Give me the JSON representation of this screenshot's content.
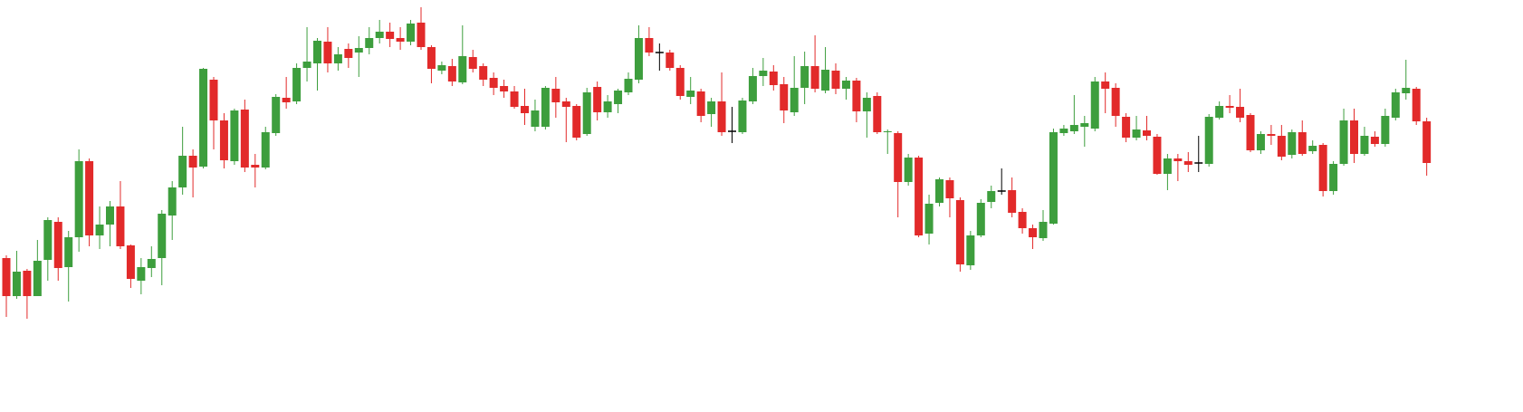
{
  "chart_data": {
    "type": "candlestick",
    "ylim": [
      0,
      455
    ],
    "up_color": "#3d9e3d",
    "down_color": "#e22a2a",
    "doji_color": "#000000",
    "open": [
      170,
      128,
      156,
      128,
      168,
      210,
      160,
      193,
      277,
      195,
      207,
      227,
      184,
      145,
      159,
      170,
      217,
      248,
      283,
      271,
      367,
      322,
      277,
      334,
      273,
      270,
      308,
      347,
      343,
      380,
      385,
      409,
      385,
      401,
      397,
      402,
      413,
      420,
      413,
      409,
      430,
      403,
      377,
      382,
      364,
      392,
      382,
      369,
      360,
      354,
      338,
      315,
      315,
      357,
      343,
      338,
      307,
      359,
      331,
      340,
      353,
      367,
      413,
      397,
      397,
      380,
      348,
      354,
      329,
      343,
      310,
      309,
      343,
      371,
      376,
      362,
      331,
      358,
      382,
      355,
      377,
      357,
      366,
      332,
      349,
      309,
      308,
      254,
      281,
      197,
      231,
      256,
      234,
      162,
      195,
      232,
      244,
      245,
      221,
      203,
      192,
      208,
      308,
      310,
      315,
      313,
      365,
      358,
      326,
      303,
      311,
      304,
      263,
      280,
      277,
      275,
      274,
      325,
      338,
      337,
      328,
      289,
      307,
      305,
      284,
      309,
      288,
      295,
      244,
      274,
      322,
      285,
      304,
      296,
      325,
      352,
      357,
      321
    ],
    "high": [
      173,
      178,
      158,
      190,
      215,
      215,
      200,
      290,
      280,
      227,
      233,
      255,
      185,
      170,
      183,
      223,
      255,
      315,
      290,
      380,
      370,
      330,
      335,
      345,
      285,
      315,
      351,
      370,
      385,
      425,
      413,
      425,
      403,
      407,
      415,
      425,
      433,
      430,
      425,
      433,
      447,
      405,
      387,
      390,
      427,
      400,
      385,
      375,
      367,
      360,
      357,
      345,
      360,
      370,
      347,
      340,
      358,
      365,
      350,
      357,
      375,
      427,
      425,
      407,
      400,
      383,
      370,
      357,
      347,
      375,
      337,
      347,
      380,
      391,
      383,
      370,
      393,
      398,
      416,
      403,
      385,
      370,
      369,
      353,
      353,
      312,
      310,
      285,
      283,
      240,
      259,
      259,
      237,
      200,
      235,
      250,
      269,
      259,
      225,
      207,
      223,
      313,
      317,
      350,
      327,
      370,
      375,
      363,
      330,
      327,
      327,
      307,
      285,
      285,
      287,
      305,
      329,
      343,
      350,
      357,
      330,
      310,
      317,
      317,
      312,
      322,
      300,
      297,
      277,
      335,
      335,
      315,
      310,
      335,
      357,
      389,
      359,
      325
    ],
    "low": [
      105,
      125,
      103,
      128,
      145,
      145,
      122,
      177,
      183,
      180,
      183,
      180,
      137,
      130,
      149,
      140,
      190,
      240,
      237,
      269,
      290,
      269,
      273,
      265,
      248,
      268,
      305,
      335,
      340,
      365,
      355,
      375,
      377,
      380,
      370,
      395,
      407,
      403,
      400,
      405,
      400,
      363,
      373,
      360,
      362,
      375,
      360,
      350,
      347,
      335,
      317,
      310,
      312,
      325,
      298,
      300,
      305,
      322,
      325,
      330,
      350,
      363,
      393,
      377,
      377,
      345,
      340,
      320,
      315,
      305,
      297,
      307,
      340,
      360,
      355,
      319,
      327,
      340,
      353,
      352,
      351,
      345,
      320,
      303,
      307,
      285,
      215,
      250,
      193,
      185,
      227,
      215,
      155,
      157,
      193,
      225,
      240,
      215,
      197,
      180,
      189,
      207,
      305,
      307,
      293,
      310,
      330,
      315,
      298,
      300,
      300,
      262,
      245,
      255,
      265,
      265,
      271,
      323,
      330,
      320,
      287,
      285,
      295,
      278,
      280,
      283,
      285,
      238,
      240,
      272,
      275,
      283,
      293,
      293,
      322,
      345,
      317,
      261
    ],
    "close": [
      128,
      155,
      128,
      167,
      212,
      159,
      193,
      277,
      195,
      207,
      227,
      183,
      147,
      160,
      169,
      219,
      248,
      283,
      270,
      379,
      322,
      278,
      333,
      270,
      270,
      309,
      348,
      342,
      380,
      387,
      410,
      385,
      395,
      391,
      402,
      413,
      420,
      412,
      409,
      429,
      403,
      379,
      383,
      365,
      393,
      379,
      367,
      358,
      354,
      337,
      330,
      333,
      358,
      342,
      337,
      303,
      353,
      331,
      343,
      355,
      368,
      413,
      397,
      397,
      380,
      349,
      355,
      327,
      343,
      309,
      310,
      344,
      371,
      377,
      361,
      333,
      358,
      382,
      357,
      378,
      357,
      366,
      332,
      347,
      309,
      310,
      254,
      281,
      195,
      230,
      257,
      236,
      163,
      195,
      231,
      244,
      244,
      220,
      203,
      193,
      210,
      309,
      313,
      317,
      319,
      365,
      357,
      327,
      303,
      312,
      305,
      263,
      280,
      277,
      273,
      275,
      326,
      338,
      336,
      325,
      289,
      307,
      305,
      282,
      309,
      285,
      294,
      244,
      274,
      322,
      285,
      305,
      296,
      327,
      353,
      358,
      321,
      275
    ]
  }
}
